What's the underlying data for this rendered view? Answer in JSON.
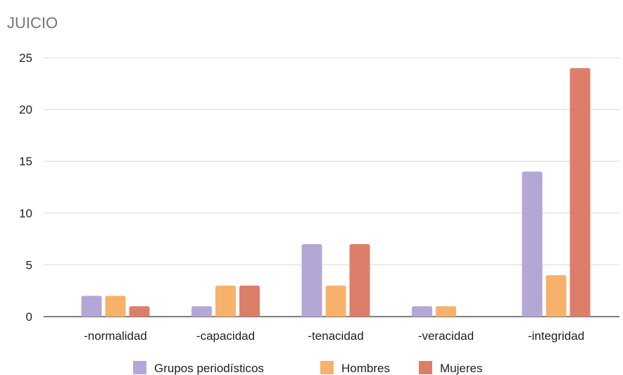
{
  "chart_data": {
    "type": "bar",
    "title": "JUICIO",
    "categories": [
      "-normalidad",
      "-capacidad",
      "-tenacidad",
      "-veracidad",
      "-integridad"
    ],
    "series": [
      {
        "name": "Grupos periodísticos",
        "color": "#b4a7d6",
        "values": [
          2,
          1,
          7,
          1,
          14
        ]
      },
      {
        "name": "Hombres",
        "color": "#f6b26b",
        "values": [
          2,
          3,
          3,
          1,
          4
        ]
      },
      {
        "name": "Mujeres",
        "color": "#dd7e6b",
        "values": [
          1,
          3,
          7,
          0,
          24
        ]
      }
    ],
    "ylim": [
      0,
      25
    ],
    "yticks": [
      "0",
      "5",
      "10",
      "15",
      "20",
      "25"
    ],
    "grid": true,
    "legend_position": "bottom"
  }
}
